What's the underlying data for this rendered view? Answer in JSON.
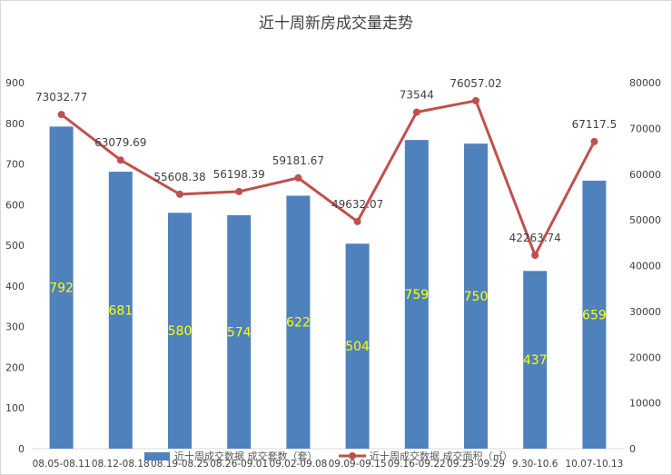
{
  "chart_data": {
    "type": "bar+line",
    "title": "近十周新房成交量走势",
    "categories": [
      "08.05-08.11",
      "08.12-08.18",
      "08.19-08.25",
      "08.26-09.01",
      "09.02-09.08",
      "09.09-09.15",
      "09.16-09.22",
      "09.23-09.29",
      "9.30-10.6",
      "10.07-10.13"
    ],
    "series": [
      {
        "name": "近十周成交数据 成交套数（套）",
        "type": "bar",
        "axis": "left",
        "color": "#4f81bd",
        "values": [
          792,
          681,
          580,
          574,
          622,
          504,
          759,
          750,
          437,
          659
        ],
        "labels": [
          "792",
          "681",
          "580",
          "574",
          "622",
          "504",
          "759",
          "750",
          "437",
          "659"
        ]
      },
      {
        "name": "近十周成交数据 成交面积（㎡）",
        "type": "line",
        "axis": "right",
        "color": "#c0504d",
        "values": [
          73032.77,
          63079.69,
          55608.38,
          56198.39,
          59181.67,
          49632.07,
          73544,
          76057.02,
          42263.74,
          67117.5
        ],
        "labels": [
          "73032.77",
          "63079.69",
          "55608.38",
          "56198.39",
          "59181.67",
          "49632.07",
          "73544",
          "76057.02",
          "42263.74",
          "67117.5"
        ]
      }
    ],
    "y_left": {
      "min": 0,
      "max": 900,
      "ticks": [
        "0",
        "100",
        "200",
        "300",
        "400",
        "500",
        "600",
        "700",
        "800",
        "900"
      ]
    },
    "y_right": {
      "min": 0,
      "max": 80000,
      "ticks": [
        "0",
        "10000",
        "20000",
        "30000",
        "40000",
        "50000",
        "60000",
        "70000",
        "80000"
      ]
    },
    "grid": false,
    "legend_position": "bottom"
  }
}
